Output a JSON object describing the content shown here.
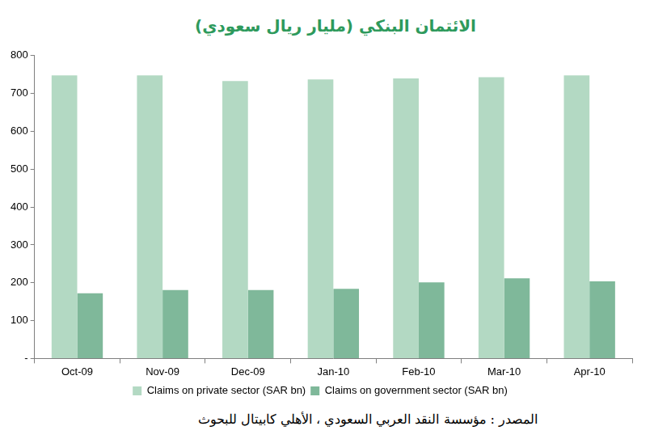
{
  "chart_data": {
    "type": "bar",
    "title": "الائتمان البنكي (مليار ريال سعودي)",
    "source": "المصدر : مؤسسة النقد العربي السعودي ، الأهلي كابيتال للبحوث",
    "categories": [
      "Oct-09",
      "Nov-09",
      "Dec-09",
      "Jan-10",
      "Feb-10",
      "Mar-10",
      "Apr-10"
    ],
    "series": [
      {
        "name": "Claims on private sector (SAR bn)",
        "color": "#b3d9c3",
        "values": [
          748,
          748,
          733,
          737,
          740,
          743,
          748
        ]
      },
      {
        "name": "Claims on government sector (SAR bn)",
        "color": "#7fb89a",
        "values": [
          172,
          181,
          181,
          184,
          201,
          212,
          204
        ]
      }
    ],
    "ylim": [
      0,
      800
    ],
    "yticks": [
      {
        "value": 0,
        "label": "-"
      },
      100,
      200,
      300,
      400,
      500,
      600,
      700,
      800
    ],
    "grid": false,
    "legend": "bottom"
  }
}
